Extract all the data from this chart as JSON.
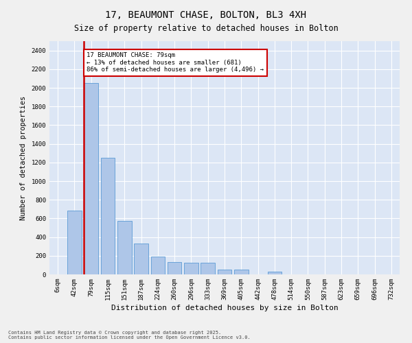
{
  "title_line1": "17, BEAUMONT CHASE, BOLTON, BL3 4XH",
  "title_line2": "Size of property relative to detached houses in Bolton",
  "xlabel": "Distribution of detached houses by size in Bolton",
  "ylabel": "Number of detached properties",
  "annotation_text": "17 BEAUMONT CHASE: 79sqm\n← 13% of detached houses are smaller (681)\n86% of semi-detached houses are larger (4,496) →",
  "footnote": "Contains HM Land Registry data © Crown copyright and database right 2025.\nContains public sector information licensed under the Open Government Licence v3.0.",
  "bar_categories": [
    "6sqm",
    "42sqm",
    "79sqm",
    "115sqm",
    "151sqm",
    "187sqm",
    "224sqm",
    "260sqm",
    "296sqm",
    "333sqm",
    "369sqm",
    "405sqm",
    "442sqm",
    "478sqm",
    "514sqm",
    "550sqm",
    "587sqm",
    "623sqm",
    "659sqm",
    "696sqm",
    "732sqm"
  ],
  "bar_values": [
    0,
    681,
    2050,
    1250,
    570,
    330,
    190,
    135,
    125,
    125,
    50,
    50,
    0,
    30,
    0,
    0,
    0,
    0,
    0,
    0,
    0
  ],
  "red_line_bin_index": 2,
  "bar_color": "#aec6e8",
  "bar_edgecolor": "#5b9bd5",
  "redline_color": "#cc0000",
  "annotation_box_edgecolor": "#cc0000",
  "background_color": "#dce6f5",
  "fig_facecolor": "#f0f0f0",
  "ylim": [
    0,
    2500
  ],
  "yticks": [
    0,
    200,
    400,
    600,
    800,
    1000,
    1200,
    1400,
    1600,
    1800,
    2000,
    2200,
    2400
  ],
  "title_fontsize": 10,
  "subtitle_fontsize": 8.5,
  "xlabel_fontsize": 8,
  "ylabel_fontsize": 7.5,
  "tick_fontsize": 6.5,
  "annot_fontsize": 6.5,
  "footnote_fontsize": 5
}
